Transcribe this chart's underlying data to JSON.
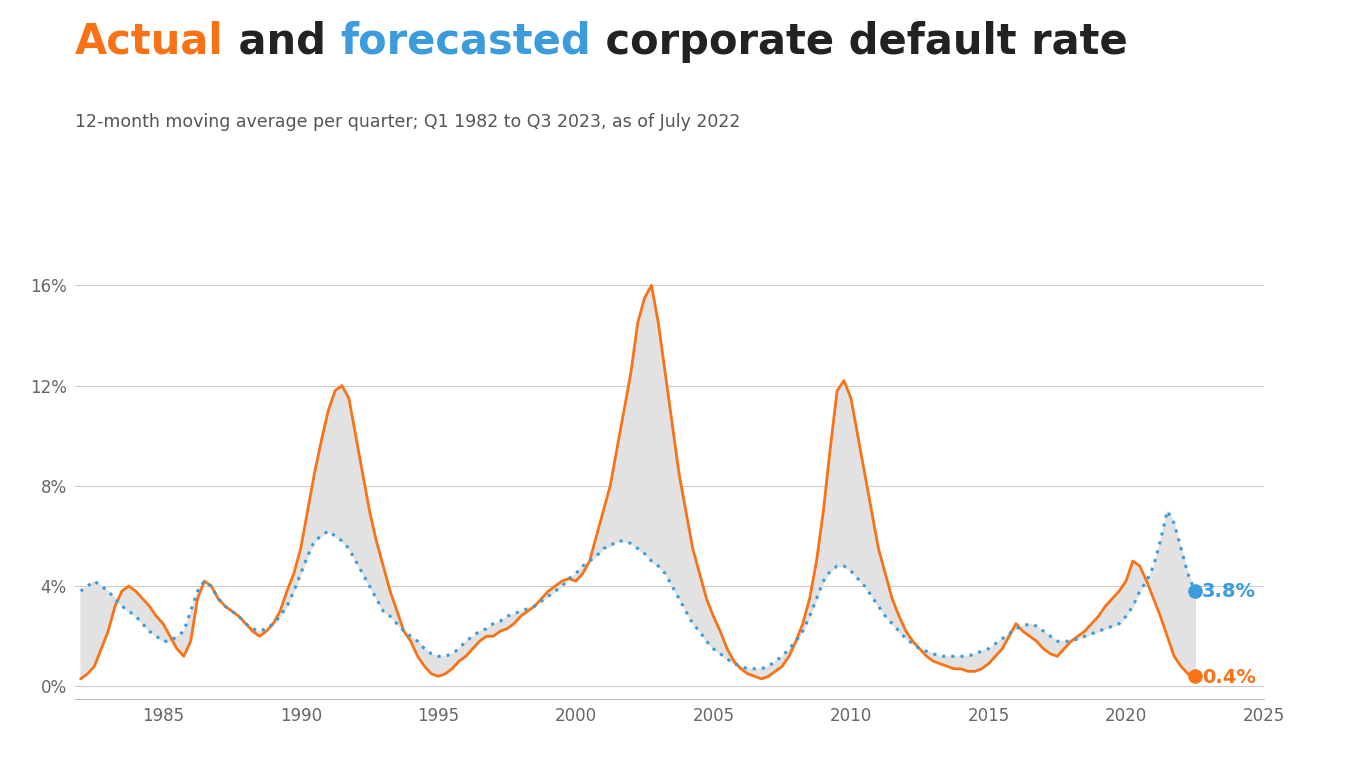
{
  "title_orange": "Actual",
  "title_mid": " and ",
  "title_blue": "forecasted",
  "title_end": " corporate default rate",
  "subtitle": "12-month moving average per quarter; Q1 1982 to Q3 2023, as of July 2022",
  "background_color": "#ffffff",
  "fill_color": "#e2e2e2",
  "orange_color": "#F97316",
  "blue_color": "#3B9BDB",
  "dark_color": "#222222",
  "end_label_blue": "3.8%",
  "end_label_orange": "0.4%",
  "yticks": [
    0,
    4,
    8,
    12,
    16
  ],
  "ylim": [
    -0.5,
    18.5
  ],
  "xlim": [
    1981.8,
    2024.2
  ],
  "orange_anchors": [
    [
      1982.0,
      0.3
    ],
    [
      1982.25,
      0.5
    ],
    [
      1982.5,
      0.8
    ],
    [
      1982.75,
      1.5
    ],
    [
      1983.0,
      2.2
    ],
    [
      1983.25,
      3.2
    ],
    [
      1983.5,
      3.8
    ],
    [
      1983.75,
      4.0
    ],
    [
      1984.0,
      3.8
    ],
    [
      1984.25,
      3.5
    ],
    [
      1984.5,
      3.2
    ],
    [
      1984.75,
      2.8
    ],
    [
      1985.0,
      2.5
    ],
    [
      1985.25,
      2.0
    ],
    [
      1985.5,
      1.5
    ],
    [
      1985.75,
      1.2
    ],
    [
      1986.0,
      1.8
    ],
    [
      1986.25,
      3.5
    ],
    [
      1986.5,
      4.2
    ],
    [
      1986.75,
      4.0
    ],
    [
      1987.0,
      3.5
    ],
    [
      1987.25,
      3.2
    ],
    [
      1987.5,
      3.0
    ],
    [
      1987.75,
      2.8
    ],
    [
      1988.0,
      2.5
    ],
    [
      1988.25,
      2.2
    ],
    [
      1988.5,
      2.0
    ],
    [
      1988.75,
      2.2
    ],
    [
      1989.0,
      2.5
    ],
    [
      1989.25,
      3.0
    ],
    [
      1989.5,
      3.8
    ],
    [
      1989.75,
      4.5
    ],
    [
      1990.0,
      5.5
    ],
    [
      1990.25,
      7.0
    ],
    [
      1990.5,
      8.5
    ],
    [
      1990.75,
      9.8
    ],
    [
      1991.0,
      11.0
    ],
    [
      1991.25,
      11.8
    ],
    [
      1991.5,
      12.0
    ],
    [
      1991.75,
      11.5
    ],
    [
      1992.0,
      10.0
    ],
    [
      1992.25,
      8.5
    ],
    [
      1992.5,
      7.0
    ],
    [
      1992.75,
      5.8
    ],
    [
      1993.0,
      4.8
    ],
    [
      1993.25,
      3.8
    ],
    [
      1993.5,
      3.0
    ],
    [
      1993.75,
      2.2
    ],
    [
      1994.0,
      1.8
    ],
    [
      1994.25,
      1.2
    ],
    [
      1994.5,
      0.8
    ],
    [
      1994.75,
      0.5
    ],
    [
      1995.0,
      0.4
    ],
    [
      1995.25,
      0.5
    ],
    [
      1995.5,
      0.7
    ],
    [
      1995.75,
      1.0
    ],
    [
      1996.0,
      1.2
    ],
    [
      1996.25,
      1.5
    ],
    [
      1996.5,
      1.8
    ],
    [
      1996.75,
      2.0
    ],
    [
      1997.0,
      2.0
    ],
    [
      1997.25,
      2.2
    ],
    [
      1997.5,
      2.3
    ],
    [
      1997.75,
      2.5
    ],
    [
      1998.0,
      2.8
    ],
    [
      1998.25,
      3.0
    ],
    [
      1998.5,
      3.2
    ],
    [
      1998.75,
      3.5
    ],
    [
      1999.0,
      3.8
    ],
    [
      1999.25,
      4.0
    ],
    [
      1999.5,
      4.2
    ],
    [
      1999.75,
      4.3
    ],
    [
      2000.0,
      4.2
    ],
    [
      2000.25,
      4.5
    ],
    [
      2000.5,
      5.0
    ],
    [
      2000.75,
      6.0
    ],
    [
      2001.0,
      7.0
    ],
    [
      2001.25,
      8.0
    ],
    [
      2001.5,
      9.5
    ],
    [
      2001.75,
      11.0
    ],
    [
      2002.0,
      12.5
    ],
    [
      2002.25,
      14.5
    ],
    [
      2002.5,
      15.5
    ],
    [
      2002.75,
      16.0
    ],
    [
      2003.0,
      14.5
    ],
    [
      2003.25,
      12.5
    ],
    [
      2003.5,
      10.5
    ],
    [
      2003.75,
      8.5
    ],
    [
      2004.0,
      7.0
    ],
    [
      2004.25,
      5.5
    ],
    [
      2004.5,
      4.5
    ],
    [
      2004.75,
      3.5
    ],
    [
      2005.0,
      2.8
    ],
    [
      2005.25,
      2.2
    ],
    [
      2005.5,
      1.5
    ],
    [
      2005.75,
      1.0
    ],
    [
      2006.0,
      0.7
    ],
    [
      2006.25,
      0.5
    ],
    [
      2006.5,
      0.4
    ],
    [
      2006.75,
      0.3
    ],
    [
      2007.0,
      0.4
    ],
    [
      2007.25,
      0.6
    ],
    [
      2007.5,
      0.8
    ],
    [
      2007.75,
      1.2
    ],
    [
      2008.0,
      1.8
    ],
    [
      2008.25,
      2.5
    ],
    [
      2008.5,
      3.5
    ],
    [
      2008.75,
      5.0
    ],
    [
      2009.0,
      7.0
    ],
    [
      2009.25,
      9.5
    ],
    [
      2009.5,
      11.8
    ],
    [
      2009.75,
      12.2
    ],
    [
      2010.0,
      11.5
    ],
    [
      2010.25,
      10.0
    ],
    [
      2010.5,
      8.5
    ],
    [
      2010.75,
      7.0
    ],
    [
      2011.0,
      5.5
    ],
    [
      2011.25,
      4.5
    ],
    [
      2011.5,
      3.5
    ],
    [
      2011.75,
      2.8
    ],
    [
      2012.0,
      2.2
    ],
    [
      2012.25,
      1.8
    ],
    [
      2012.5,
      1.5
    ],
    [
      2012.75,
      1.2
    ],
    [
      2013.0,
      1.0
    ],
    [
      2013.25,
      0.9
    ],
    [
      2013.5,
      0.8
    ],
    [
      2013.75,
      0.7
    ],
    [
      2014.0,
      0.7
    ],
    [
      2014.25,
      0.6
    ],
    [
      2014.5,
      0.6
    ],
    [
      2014.75,
      0.7
    ],
    [
      2015.0,
      0.9
    ],
    [
      2015.25,
      1.2
    ],
    [
      2015.5,
      1.5
    ],
    [
      2015.75,
      2.0
    ],
    [
      2016.0,
      2.5
    ],
    [
      2016.25,
      2.2
    ],
    [
      2016.5,
      2.0
    ],
    [
      2016.75,
      1.8
    ],
    [
      2017.0,
      1.5
    ],
    [
      2017.25,
      1.3
    ],
    [
      2017.5,
      1.2
    ],
    [
      2017.75,
      1.5
    ],
    [
      2018.0,
      1.8
    ],
    [
      2018.25,
      2.0
    ],
    [
      2018.5,
      2.2
    ],
    [
      2018.75,
      2.5
    ],
    [
      2019.0,
      2.8
    ],
    [
      2019.25,
      3.2
    ],
    [
      2019.5,
      3.5
    ],
    [
      2019.75,
      3.8
    ],
    [
      2020.0,
      4.2
    ],
    [
      2020.25,
      5.0
    ],
    [
      2020.5,
      4.8
    ],
    [
      2020.75,
      4.2
    ],
    [
      2021.0,
      3.5
    ],
    [
      2021.25,
      2.8
    ],
    [
      2021.5,
      2.0
    ],
    [
      2021.75,
      1.2
    ],
    [
      2022.0,
      0.8
    ],
    [
      2022.25,
      0.5
    ],
    [
      2022.5,
      0.4
    ]
  ],
  "blue_anchors": [
    [
      1982.0,
      3.8
    ],
    [
      1982.25,
      4.0
    ],
    [
      1982.5,
      4.2
    ],
    [
      1982.75,
      4.0
    ],
    [
      1983.0,
      3.8
    ],
    [
      1983.25,
      3.5
    ],
    [
      1983.5,
      3.2
    ],
    [
      1983.75,
      3.0
    ],
    [
      1984.0,
      2.8
    ],
    [
      1984.25,
      2.5
    ],
    [
      1984.5,
      2.2
    ],
    [
      1984.75,
      2.0
    ],
    [
      1985.0,
      1.8
    ],
    [
      1985.25,
      1.8
    ],
    [
      1985.5,
      2.0
    ],
    [
      1985.75,
      2.2
    ],
    [
      1986.0,
      3.0
    ],
    [
      1986.25,
      3.8
    ],
    [
      1986.5,
      4.2
    ],
    [
      1986.75,
      4.0
    ],
    [
      1987.0,
      3.5
    ],
    [
      1987.25,
      3.2
    ],
    [
      1987.5,
      3.0
    ],
    [
      1987.75,
      2.8
    ],
    [
      1988.0,
      2.5
    ],
    [
      1988.25,
      2.3
    ],
    [
      1988.5,
      2.2
    ],
    [
      1988.75,
      2.3
    ],
    [
      1989.0,
      2.5
    ],
    [
      1989.25,
      2.8
    ],
    [
      1989.5,
      3.2
    ],
    [
      1989.75,
      3.8
    ],
    [
      1990.0,
      4.5
    ],
    [
      1990.25,
      5.2
    ],
    [
      1990.5,
      5.8
    ],
    [
      1990.75,
      6.0
    ],
    [
      1991.0,
      6.2
    ],
    [
      1991.25,
      6.0
    ],
    [
      1991.5,
      5.8
    ],
    [
      1991.75,
      5.5
    ],
    [
      1992.0,
      5.0
    ],
    [
      1992.25,
      4.5
    ],
    [
      1992.5,
      4.0
    ],
    [
      1992.75,
      3.5
    ],
    [
      1993.0,
      3.0
    ],
    [
      1993.25,
      2.8
    ],
    [
      1993.5,
      2.5
    ],
    [
      1993.75,
      2.2
    ],
    [
      1994.0,
      2.0
    ],
    [
      1994.25,
      1.8
    ],
    [
      1994.5,
      1.5
    ],
    [
      1994.75,
      1.3
    ],
    [
      1995.0,
      1.2
    ],
    [
      1995.25,
      1.2
    ],
    [
      1995.5,
      1.3
    ],
    [
      1995.75,
      1.5
    ],
    [
      1996.0,
      1.8
    ],
    [
      1996.25,
      2.0
    ],
    [
      1996.5,
      2.2
    ],
    [
      1996.75,
      2.3
    ],
    [
      1997.0,
      2.5
    ],
    [
      1997.25,
      2.6
    ],
    [
      1997.5,
      2.8
    ],
    [
      1997.75,
      2.9
    ],
    [
      1998.0,
      3.0
    ],
    [
      1998.25,
      3.1
    ],
    [
      1998.5,
      3.2
    ],
    [
      1998.75,
      3.4
    ],
    [
      1999.0,
      3.6
    ],
    [
      1999.25,
      3.8
    ],
    [
      1999.5,
      4.0
    ],
    [
      1999.75,
      4.3
    ],
    [
      2000.0,
      4.5
    ],
    [
      2000.25,
      4.8
    ],
    [
      2000.5,
      5.0
    ],
    [
      2000.75,
      5.2
    ],
    [
      2001.0,
      5.5
    ],
    [
      2001.25,
      5.6
    ],
    [
      2001.5,
      5.8
    ],
    [
      2001.75,
      5.8
    ],
    [
      2002.0,
      5.7
    ],
    [
      2002.25,
      5.5
    ],
    [
      2002.5,
      5.3
    ],
    [
      2002.75,
      5.0
    ],
    [
      2003.0,
      4.8
    ],
    [
      2003.25,
      4.5
    ],
    [
      2003.5,
      4.0
    ],
    [
      2003.75,
      3.5
    ],
    [
      2004.0,
      3.0
    ],
    [
      2004.25,
      2.5
    ],
    [
      2004.5,
      2.2
    ],
    [
      2004.75,
      1.8
    ],
    [
      2005.0,
      1.5
    ],
    [
      2005.25,
      1.3
    ],
    [
      2005.5,
      1.1
    ],
    [
      2005.75,
      0.9
    ],
    [
      2006.0,
      0.8
    ],
    [
      2006.25,
      0.7
    ],
    [
      2006.5,
      0.7
    ],
    [
      2006.75,
      0.7
    ],
    [
      2007.0,
      0.8
    ],
    [
      2007.25,
      1.0
    ],
    [
      2007.5,
      1.2
    ],
    [
      2007.75,
      1.5
    ],
    [
      2008.0,
      1.8
    ],
    [
      2008.25,
      2.2
    ],
    [
      2008.5,
      2.8
    ],
    [
      2008.75,
      3.5
    ],
    [
      2009.0,
      4.2
    ],
    [
      2009.25,
      4.6
    ],
    [
      2009.5,
      4.8
    ],
    [
      2009.75,
      4.8
    ],
    [
      2010.0,
      4.6
    ],
    [
      2010.25,
      4.3
    ],
    [
      2010.5,
      4.0
    ],
    [
      2010.75,
      3.6
    ],
    [
      2011.0,
      3.2
    ],
    [
      2011.25,
      2.8
    ],
    [
      2011.5,
      2.5
    ],
    [
      2011.75,
      2.2
    ],
    [
      2012.0,
      1.9
    ],
    [
      2012.25,
      1.7
    ],
    [
      2012.5,
      1.5
    ],
    [
      2012.75,
      1.4
    ],
    [
      2013.0,
      1.3
    ],
    [
      2013.25,
      1.2
    ],
    [
      2013.5,
      1.2
    ],
    [
      2013.75,
      1.2
    ],
    [
      2014.0,
      1.2
    ],
    [
      2014.25,
      1.2
    ],
    [
      2014.5,
      1.3
    ],
    [
      2014.75,
      1.4
    ],
    [
      2015.0,
      1.5
    ],
    [
      2015.25,
      1.7
    ],
    [
      2015.5,
      1.9
    ],
    [
      2015.75,
      2.1
    ],
    [
      2016.0,
      2.3
    ],
    [
      2016.25,
      2.4
    ],
    [
      2016.5,
      2.5
    ],
    [
      2016.75,
      2.4
    ],
    [
      2017.0,
      2.2
    ],
    [
      2017.25,
      2.0
    ],
    [
      2017.5,
      1.8
    ],
    [
      2017.75,
      1.8
    ],
    [
      2018.0,
      1.8
    ],
    [
      2018.25,
      1.9
    ],
    [
      2018.5,
      2.0
    ],
    [
      2018.75,
      2.1
    ],
    [
      2019.0,
      2.2
    ],
    [
      2019.25,
      2.3
    ],
    [
      2019.5,
      2.4
    ],
    [
      2019.75,
      2.5
    ],
    [
      2020.0,
      2.8
    ],
    [
      2020.25,
      3.2
    ],
    [
      2020.5,
      3.8
    ],
    [
      2020.75,
      4.2
    ],
    [
      2021.0,
      4.8
    ],
    [
      2021.25,
      5.8
    ],
    [
      2021.5,
      7.0
    ],
    [
      2021.75,
      6.5
    ],
    [
      2022.0,
      5.5
    ],
    [
      2022.25,
      4.5
    ],
    [
      2022.5,
      3.8
    ]
  ]
}
